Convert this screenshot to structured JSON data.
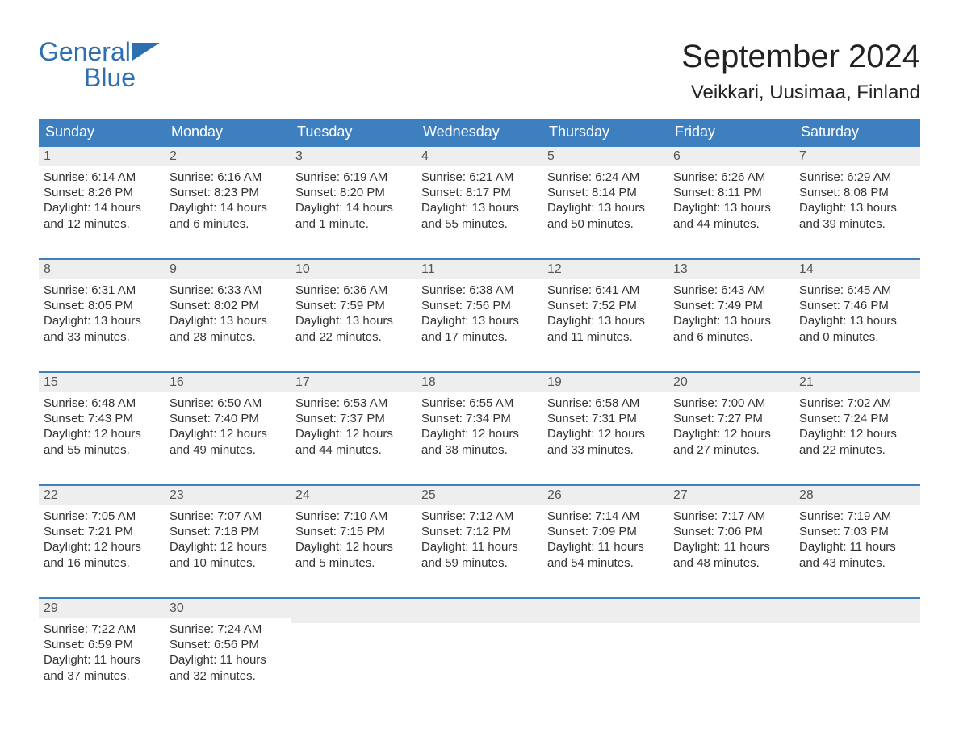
{
  "brand": {
    "line1": "General",
    "line2": "Blue",
    "text_color": "#2d6fb0",
    "flag_color": "#2d6fb0"
  },
  "header": {
    "month_title": "September 2024",
    "location": "Veikkari, Uusimaa, Finland"
  },
  "styling": {
    "page_background": "#ffffff",
    "header_row_bg": "#3d7fbf",
    "header_row_text": "#ffffff",
    "week_divider_color": "#3d7fbf",
    "day_num_band_bg": "#eeeeee",
    "day_num_text_color": "#555555",
    "body_text_color": "#333333",
    "title_font_size_pt": 30,
    "location_font_size_pt": 18,
    "weekday_font_size_pt": 14,
    "day_text_font_size_pt": 11
  },
  "weekdays": [
    "Sunday",
    "Monday",
    "Tuesday",
    "Wednesday",
    "Thursday",
    "Friday",
    "Saturday"
  ],
  "weeks": [
    [
      {
        "n": "1",
        "sunrise": "Sunrise: 6:14 AM",
        "sunset": "Sunset: 8:26 PM",
        "dl1": "Daylight: 14 hours",
        "dl2": "and 12 minutes."
      },
      {
        "n": "2",
        "sunrise": "Sunrise: 6:16 AM",
        "sunset": "Sunset: 8:23 PM",
        "dl1": "Daylight: 14 hours",
        "dl2": "and 6 minutes."
      },
      {
        "n": "3",
        "sunrise": "Sunrise: 6:19 AM",
        "sunset": "Sunset: 8:20 PM",
        "dl1": "Daylight: 14 hours",
        "dl2": "and 1 minute."
      },
      {
        "n": "4",
        "sunrise": "Sunrise: 6:21 AM",
        "sunset": "Sunset: 8:17 PM",
        "dl1": "Daylight: 13 hours",
        "dl2": "and 55 minutes."
      },
      {
        "n": "5",
        "sunrise": "Sunrise: 6:24 AM",
        "sunset": "Sunset: 8:14 PM",
        "dl1": "Daylight: 13 hours",
        "dl2": "and 50 minutes."
      },
      {
        "n": "6",
        "sunrise": "Sunrise: 6:26 AM",
        "sunset": "Sunset: 8:11 PM",
        "dl1": "Daylight: 13 hours",
        "dl2": "and 44 minutes."
      },
      {
        "n": "7",
        "sunrise": "Sunrise: 6:29 AM",
        "sunset": "Sunset: 8:08 PM",
        "dl1": "Daylight: 13 hours",
        "dl2": "and 39 minutes."
      }
    ],
    [
      {
        "n": "8",
        "sunrise": "Sunrise: 6:31 AM",
        "sunset": "Sunset: 8:05 PM",
        "dl1": "Daylight: 13 hours",
        "dl2": "and 33 minutes."
      },
      {
        "n": "9",
        "sunrise": "Sunrise: 6:33 AM",
        "sunset": "Sunset: 8:02 PM",
        "dl1": "Daylight: 13 hours",
        "dl2": "and 28 minutes."
      },
      {
        "n": "10",
        "sunrise": "Sunrise: 6:36 AM",
        "sunset": "Sunset: 7:59 PM",
        "dl1": "Daylight: 13 hours",
        "dl2": "and 22 minutes."
      },
      {
        "n": "11",
        "sunrise": "Sunrise: 6:38 AM",
        "sunset": "Sunset: 7:56 PM",
        "dl1": "Daylight: 13 hours",
        "dl2": "and 17 minutes."
      },
      {
        "n": "12",
        "sunrise": "Sunrise: 6:41 AM",
        "sunset": "Sunset: 7:52 PM",
        "dl1": "Daylight: 13 hours",
        "dl2": "and 11 minutes."
      },
      {
        "n": "13",
        "sunrise": "Sunrise: 6:43 AM",
        "sunset": "Sunset: 7:49 PM",
        "dl1": "Daylight: 13 hours",
        "dl2": "and 6 minutes."
      },
      {
        "n": "14",
        "sunrise": "Sunrise: 6:45 AM",
        "sunset": "Sunset: 7:46 PM",
        "dl1": "Daylight: 13 hours",
        "dl2": "and 0 minutes."
      }
    ],
    [
      {
        "n": "15",
        "sunrise": "Sunrise: 6:48 AM",
        "sunset": "Sunset: 7:43 PM",
        "dl1": "Daylight: 12 hours",
        "dl2": "and 55 minutes."
      },
      {
        "n": "16",
        "sunrise": "Sunrise: 6:50 AM",
        "sunset": "Sunset: 7:40 PM",
        "dl1": "Daylight: 12 hours",
        "dl2": "and 49 minutes."
      },
      {
        "n": "17",
        "sunrise": "Sunrise: 6:53 AM",
        "sunset": "Sunset: 7:37 PM",
        "dl1": "Daylight: 12 hours",
        "dl2": "and 44 minutes."
      },
      {
        "n": "18",
        "sunrise": "Sunrise: 6:55 AM",
        "sunset": "Sunset: 7:34 PM",
        "dl1": "Daylight: 12 hours",
        "dl2": "and 38 minutes."
      },
      {
        "n": "19",
        "sunrise": "Sunrise: 6:58 AM",
        "sunset": "Sunset: 7:31 PM",
        "dl1": "Daylight: 12 hours",
        "dl2": "and 33 minutes."
      },
      {
        "n": "20",
        "sunrise": "Sunrise: 7:00 AM",
        "sunset": "Sunset: 7:27 PM",
        "dl1": "Daylight: 12 hours",
        "dl2": "and 27 minutes."
      },
      {
        "n": "21",
        "sunrise": "Sunrise: 7:02 AM",
        "sunset": "Sunset: 7:24 PM",
        "dl1": "Daylight: 12 hours",
        "dl2": "and 22 minutes."
      }
    ],
    [
      {
        "n": "22",
        "sunrise": "Sunrise: 7:05 AM",
        "sunset": "Sunset: 7:21 PM",
        "dl1": "Daylight: 12 hours",
        "dl2": "and 16 minutes."
      },
      {
        "n": "23",
        "sunrise": "Sunrise: 7:07 AM",
        "sunset": "Sunset: 7:18 PM",
        "dl1": "Daylight: 12 hours",
        "dl2": "and 10 minutes."
      },
      {
        "n": "24",
        "sunrise": "Sunrise: 7:10 AM",
        "sunset": "Sunset: 7:15 PM",
        "dl1": "Daylight: 12 hours",
        "dl2": "and 5 minutes."
      },
      {
        "n": "25",
        "sunrise": "Sunrise: 7:12 AM",
        "sunset": "Sunset: 7:12 PM",
        "dl1": "Daylight: 11 hours",
        "dl2": "and 59 minutes."
      },
      {
        "n": "26",
        "sunrise": "Sunrise: 7:14 AM",
        "sunset": "Sunset: 7:09 PM",
        "dl1": "Daylight: 11 hours",
        "dl2": "and 54 minutes."
      },
      {
        "n": "27",
        "sunrise": "Sunrise: 7:17 AM",
        "sunset": "Sunset: 7:06 PM",
        "dl1": "Daylight: 11 hours",
        "dl2": "and 48 minutes."
      },
      {
        "n": "28",
        "sunrise": "Sunrise: 7:19 AM",
        "sunset": "Sunset: 7:03 PM",
        "dl1": "Daylight: 11 hours",
        "dl2": "and 43 minutes."
      }
    ],
    [
      {
        "n": "29",
        "sunrise": "Sunrise: 7:22 AM",
        "sunset": "Sunset: 6:59 PM",
        "dl1": "Daylight: 11 hours",
        "dl2": "and 37 minutes."
      },
      {
        "n": "30",
        "sunrise": "Sunrise: 7:24 AM",
        "sunset": "Sunset: 6:56 PM",
        "dl1": "Daylight: 11 hours",
        "dl2": "and 32 minutes."
      },
      {
        "empty": true
      },
      {
        "empty": true
      },
      {
        "empty": true
      },
      {
        "empty": true
      },
      {
        "empty": true
      }
    ]
  ]
}
